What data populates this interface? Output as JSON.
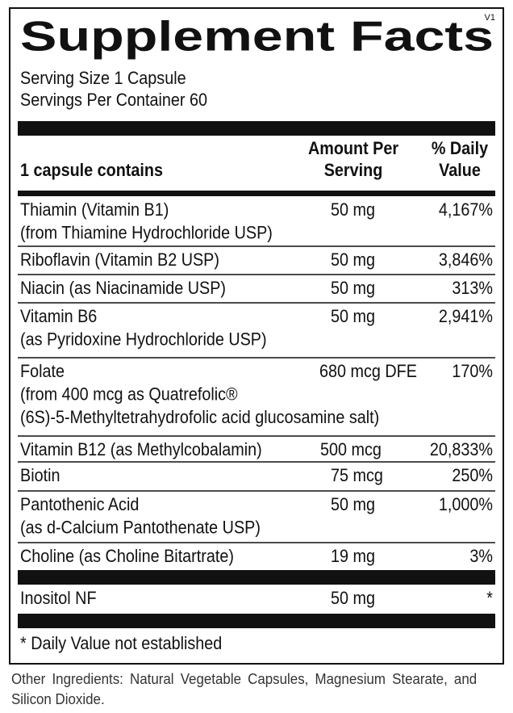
{
  "version": "V1",
  "title": "Supplement Facts",
  "serving_size": "Serving Size 1 Capsule",
  "servings_per_container": "Servings Per Container 60",
  "table": {
    "header": {
      "name": "1 capsule contains",
      "amount": [
        "Amount Per",
        "Serving"
      ],
      "daily_value": [
        "% Daily",
        "Value"
      ]
    },
    "rows": [
      {
        "name": [
          "Thiamin (Vitamin B1)",
          "(from Thiamine Hydrochloride USP)"
        ],
        "amount": "50 mg",
        "daily_value": "4,167%"
      },
      {
        "name": [
          "Riboflavin (Vitamin B2 USP)"
        ],
        "amount": "50 mg",
        "daily_value": "3,846%"
      },
      {
        "name": [
          "Niacin (as Niacinamide USP)"
        ],
        "amount": "50 mg",
        "daily_value": "313%"
      },
      {
        "name": [
          "Vitamin B6",
          "(as Pyridoxine Hydrochloride USP)"
        ],
        "amount": "50 mg",
        "daily_value": "2,941%"
      },
      {
        "name": [
          "Folate",
          "(from 400 mcg as Quatrefolic®",
          "(6S)-5-Methyltetrahydrofolic acid glucosamine salt)"
        ],
        "amount": "680 mcg DFE",
        "daily_value": "170%"
      },
      {
        "name": [
          "Vitamin B12 (as Methylcobalamin)"
        ],
        "amount": "500 mcg",
        "daily_value": "20,833%"
      },
      {
        "name": [
          "Biotin"
        ],
        "amount": "75 mcg",
        "daily_value": "250%"
      },
      {
        "name": [
          "Pantothenic Acid",
          "(as d-Calcium Pantothenate USP)"
        ],
        "amount": "50 mg",
        "daily_value": "1,000%"
      },
      {
        "name": [
          "Choline (as Choline Bitartrate)"
        ],
        "amount": "19 mg",
        "daily_value": "3%"
      },
      {
        "name": [
          "Inositol NF"
        ],
        "amount": "50 mg",
        "daily_value": "*"
      }
    ]
  },
  "footnote": "* Daily Value not established",
  "other_ingredients": "Other Ingredients: Natural Vegetable Capsules, Magnesium Stearate, and Silicon Dioxide."
}
